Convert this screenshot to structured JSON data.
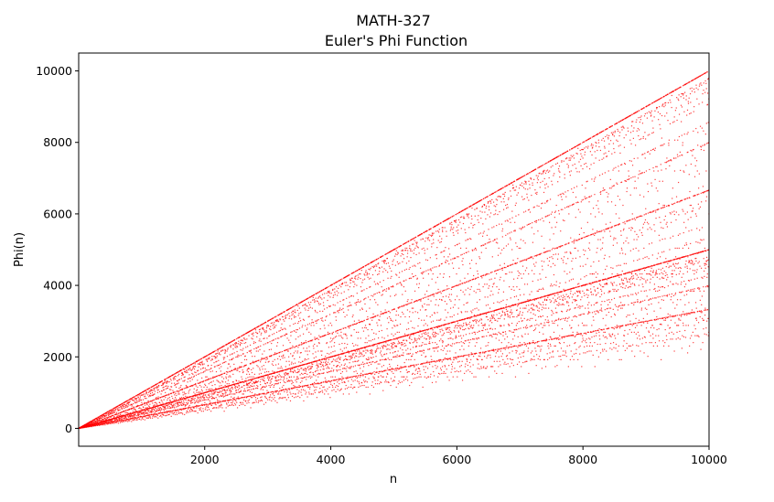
{
  "chart_data": {
    "type": "scatter",
    "title": "MATH-327",
    "subtitle": "Euler's Phi Function",
    "xlabel": "n",
    "ylabel": "Phi(n)",
    "xlim": [
      1,
      10000
    ],
    "ylim": [
      -500,
      10500
    ],
    "x_ticks": [
      2000,
      4000,
      6000,
      8000,
      10000
    ],
    "y_ticks": [
      0,
      2000,
      4000,
      6000,
      8000,
      10000
    ],
    "grid": false,
    "series": [
      {
        "function": "phi(n)",
        "n_range": [
          1,
          10000
        ],
        "color": "#ff0000",
        "marker": "dot"
      }
    ]
  }
}
